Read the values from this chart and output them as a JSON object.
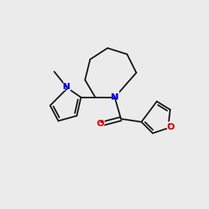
{
  "bg_color": "#ebebeb",
  "bond_color": "#1a1a1a",
  "N_color": "#0000ee",
  "O_color": "#ee0000",
  "line_width": 1.6,
  "font_size_atom": 9.5,
  "figsize": [
    3.0,
    3.0
  ],
  "dpi": 100,
  "xlim": [
    0,
    10
  ],
  "ylim": [
    0,
    10
  ]
}
